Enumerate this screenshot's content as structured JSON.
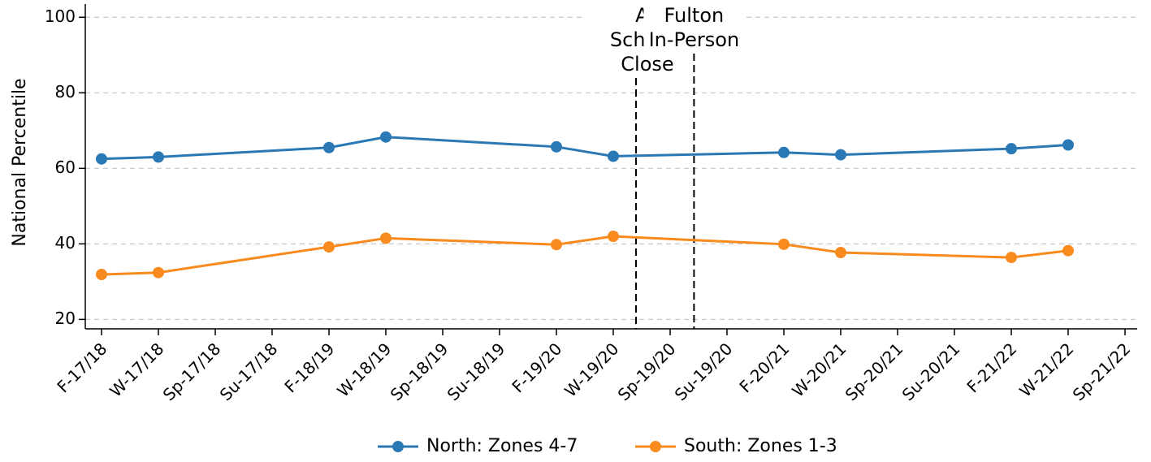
{
  "chart_data": {
    "type": "line",
    "y_label": "National Percentile",
    "categories": [
      "F-17/18",
      "W-17/18",
      "Sp-17/18",
      "Su-17/18",
      "F-18/19",
      "W-18/19",
      "Sp-18/19",
      "Su-18/19",
      "F-19/20",
      "W-19/20",
      "Sp-19/20",
      "Su-19/20",
      "F-20/21",
      "W-20/21",
      "Sp-20/21",
      "Su-20/21",
      "F-21/22",
      "W-21/22",
      "Sp-21/22"
    ],
    "series": [
      {
        "name": "North: Zones 4-7",
        "color": "#2a78b4",
        "x": [
          "F-17/18",
          "W-17/18",
          "F-18/19",
          "W-18/19",
          "F-19/20",
          "W-19/20",
          "F-20/21",
          "W-20/21",
          "F-21/22",
          "W-21/22"
        ],
        "values": [
          62.5,
          63,
          65.5,
          68.3,
          65.7,
          63.2,
          64.2,
          63.6,
          65.2,
          66.2
        ]
      },
      {
        "name": "South: Zones 1-3",
        "color": "#f98a1e",
        "x": [
          "F-17/18",
          "W-17/18",
          "F-18/19",
          "W-18/19",
          "F-19/20",
          "W-19/20",
          "F-20/21",
          "W-20/21",
          "F-21/22",
          "W-21/22"
        ],
        "values": [
          31.9,
          32.4,
          39.2,
          41.5,
          39.8,
          42,
          39.9,
          37.7,
          36.4,
          38.2
        ]
      }
    ],
    "annotations": [
      {
        "lines": [
          "All",
          "Schools",
          "Close"
        ],
        "x": 9.4
      },
      {
        "lines": [
          "Fulton",
          "In-Person"
        ],
        "x": 10.42
      }
    ],
    "ylim": [
      17.5,
      103.5
    ],
    "yticks": [
      20,
      40,
      60,
      80,
      100
    ],
    "grid": true,
    "legend": "bottom"
  }
}
